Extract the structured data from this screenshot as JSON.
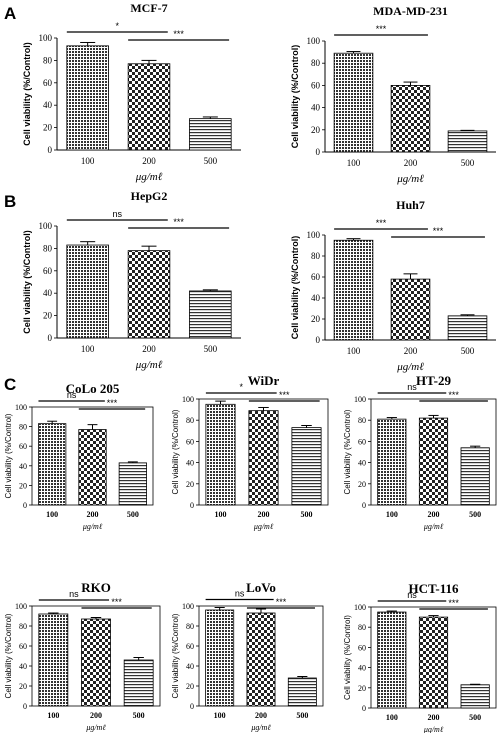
{
  "panel_labels": [
    "A",
    "B",
    "C"
  ],
  "y_label_default": "Cell viability (%/Control)",
  "y_label_boxed": "Cell viability (%/Control)",
  "x_axis_unit": "μg/mℓ",
  "significance_marks": {
    "star1": "*",
    "star3": "***",
    "ns": "ns"
  },
  "chart_data": [
    {
      "id": "mcf7",
      "type": "bar",
      "title": "MCF-7",
      "xlabel": "μg/mℓ",
      "ylabel": "Cell viability (%/Control)",
      "categories": [
        "100",
        "200",
        "500"
      ],
      "values": [
        93,
        77,
        28
      ],
      "errors": [
        3,
        3,
        1.5
      ],
      "ylim": [
        0,
        100
      ],
      "yticks": [
        0,
        20,
        40,
        60,
        80,
        100
      ],
      "significance": [
        {
          "from": 0,
          "to": 1,
          "label": "*"
        },
        {
          "from": 1,
          "to": 2,
          "label": "***"
        }
      ]
    },
    {
      "id": "mda",
      "type": "bar",
      "title": "MDA-MD-231",
      "xlabel": "μg/mℓ",
      "ylabel": "Cell viability (%/Control)",
      "categories": [
        "100",
        "200",
        "500"
      ],
      "values": [
        89,
        60,
        19
      ],
      "errors": [
        1.5,
        3,
        0.5
      ],
      "ylim": [
        0,
        100
      ],
      "yticks": [
        0,
        20,
        40,
        60,
        80,
        100
      ],
      "significance": [
        {
          "from": 0,
          "to": 1,
          "label": "***"
        }
      ]
    },
    {
      "id": "hepg2",
      "type": "bar",
      "title": "HepG2",
      "xlabel": "μg/mℓ",
      "ylabel": "Cell viability (%/Control)",
      "categories": [
        "100",
        "200",
        "500"
      ],
      "values": [
        83,
        78,
        42
      ],
      "errors": [
        3,
        4,
        1
      ],
      "ylim": [
        0,
        100
      ],
      "yticks": [
        0,
        20,
        40,
        60,
        80,
        100
      ],
      "significance": [
        {
          "from": 0,
          "to": 1,
          "label": "ns"
        },
        {
          "from": 1,
          "to": 2,
          "label": "***"
        }
      ]
    },
    {
      "id": "huh7",
      "type": "bar",
      "title": "Huh7",
      "xlabel": "μg/mℓ",
      "ylabel": "Cell viability (%/Control)",
      "categories": [
        "100",
        "200",
        "500"
      ],
      "values": [
        95,
        58,
        23
      ],
      "errors": [
        1.5,
        5,
        1
      ],
      "ylim": [
        0,
        100
      ],
      "yticks": [
        0,
        20,
        40,
        60,
        80,
        100
      ],
      "significance": [
        {
          "from": 0,
          "to": 1,
          "label": "***"
        },
        {
          "from": 1,
          "to": 2,
          "label": "***"
        }
      ]
    },
    {
      "id": "colo205",
      "type": "bar",
      "title": "CoLo 205",
      "xlabel": "μg/mℓ",
      "ylabel": "Cell viability (%/Control)",
      "categories": [
        "100",
        "200",
        "500"
      ],
      "values": [
        83,
        77,
        43
      ],
      "errors": [
        2.5,
        5,
        1
      ],
      "ylim": [
        0,
        100
      ],
      "yticks": [
        0,
        20,
        40,
        60,
        80,
        100
      ],
      "significance": [
        {
          "from": 0,
          "to": 1,
          "label": "ns"
        },
        {
          "from": 1,
          "to": 2,
          "label": "***"
        }
      ]
    },
    {
      "id": "widr",
      "type": "bar",
      "title": "WiDr",
      "xlabel": "μg/mℓ",
      "ylabel": "Cell viability (%/Control)",
      "categories": [
        "100",
        "200",
        "500"
      ],
      "values": [
        95,
        89,
        73
      ],
      "errors": [
        3,
        3,
        2
      ],
      "ylim": [
        0,
        100
      ],
      "yticks": [
        0,
        20,
        40,
        60,
        80,
        100
      ],
      "significance": [
        {
          "from": 0,
          "to": 1,
          "label": "*"
        },
        {
          "from": 1,
          "to": 2,
          "label": "***"
        }
      ]
    },
    {
      "id": "ht29",
      "type": "bar",
      "title": "HT-29",
      "xlabel": "μg/mℓ",
      "ylabel": "Cell viability (%/Control)",
      "categories": [
        "100",
        "200",
        "500"
      ],
      "values": [
        81,
        82,
        54
      ],
      "errors": [
        1.5,
        2.5,
        1.5
      ],
      "ylim": [
        0,
        100
      ],
      "yticks": [
        0,
        20,
        40,
        60,
        80,
        100
      ],
      "significance": [
        {
          "from": 0,
          "to": 1,
          "label": "ns"
        },
        {
          "from": 1,
          "to": 2,
          "label": "***"
        }
      ]
    },
    {
      "id": "rko",
      "type": "bar",
      "title": "RKO",
      "xlabel": "μg/mℓ",
      "ylabel": "Cell viability (%/Control)",
      "categories": [
        "100",
        "200",
        "500"
      ],
      "values": [
        92,
        87,
        46
      ],
      "errors": [
        1,
        1.5,
        2.5
      ],
      "ylim": [
        0,
        100
      ],
      "yticks": [
        0,
        20,
        40,
        60,
        80,
        100
      ],
      "significance": [
        {
          "from": 0,
          "to": 1,
          "label": "ns"
        },
        {
          "from": 1,
          "to": 2,
          "label": "***"
        }
      ]
    },
    {
      "id": "lovo",
      "type": "bar",
      "title": "LoVo",
      "xlabel": "μg/mℓ",
      "ylabel": "Cell viability (%/Control)",
      "categories": [
        "100",
        "200",
        "500"
      ],
      "values": [
        96,
        93,
        28
      ],
      "errors": [
        2.5,
        4,
        1.5
      ],
      "ylim": [
        0,
        100
      ],
      "yticks": [
        0,
        20,
        40,
        60,
        80,
        100
      ],
      "significance": [
        {
          "from": 0,
          "to": 1,
          "label": "ns"
        },
        {
          "from": 1,
          "to": 2,
          "label": "***"
        }
      ]
    },
    {
      "id": "hct116",
      "type": "bar",
      "title": "HCT-116",
      "xlabel": "μg/mℓ",
      "ylabel": "Cell viability (%/Control)",
      "categories": [
        "100",
        "200",
        "500"
      ],
      "values": [
        95,
        90,
        23
      ],
      "errors": [
        1,
        1.5,
        0.5
      ],
      "ylim": [
        0,
        100
      ],
      "yticks": [
        0,
        20,
        40,
        60,
        80,
        100
      ],
      "significance": [
        {
          "from": 0,
          "to": 1,
          "label": "ns"
        },
        {
          "from": 1,
          "to": 2,
          "label": "***"
        }
      ]
    }
  ]
}
